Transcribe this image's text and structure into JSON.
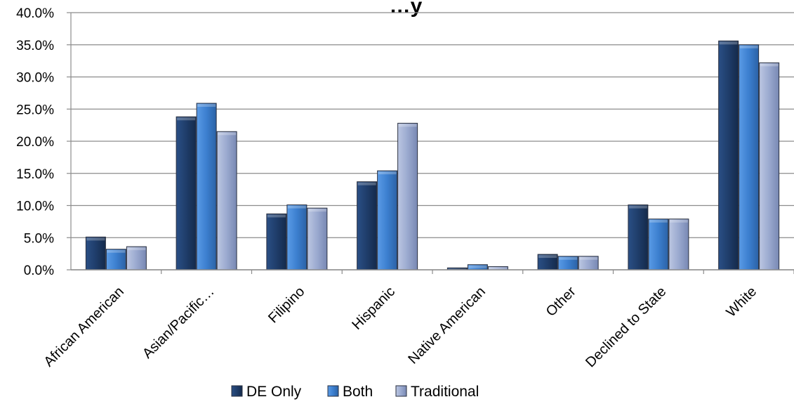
{
  "chart_data": {
    "type": "bar",
    "title": "…y",
    "categories": [
      "African American",
      "Asian/Pacific…",
      "Filipino",
      "Hispanic",
      "Native American",
      "Other",
      "Declined to State",
      "White"
    ],
    "series": [
      {
        "name": "DE Only",
        "values": [
          5.1,
          23.8,
          8.7,
          13.7,
          0.3,
          2.4,
          10.1,
          35.6
        ],
        "color": "#1f3d6a"
      },
      {
        "name": "Both",
        "values": [
          3.2,
          25.9,
          10.1,
          15.4,
          0.8,
          2.1,
          7.9,
          35.0
        ],
        "color": "#3c7fcf"
      },
      {
        "name": "Traditional",
        "values": [
          3.6,
          21.5,
          9.6,
          22.8,
          0.5,
          2.1,
          7.9,
          32.2
        ],
        "color": "#9aa9cf"
      }
    ],
    "ylim": [
      0,
      40
    ],
    "yticks": [
      "0.0%",
      "5.0%",
      "10.0%",
      "15.0%",
      "20.0%",
      "25.0%",
      "30.0%",
      "35.0%",
      "40.0%"
    ],
    "grid": true,
    "legend_position": "bottom"
  }
}
